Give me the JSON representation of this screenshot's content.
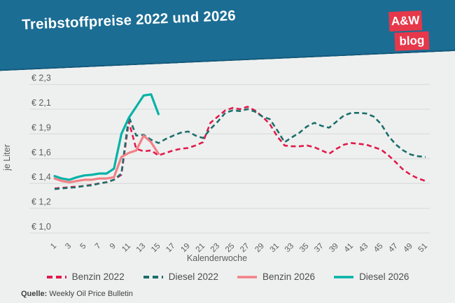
{
  "header": {
    "title": "Treibstoffpreise 2022 und 2026",
    "logo_line1": "A&W",
    "logo_line2": "blog",
    "banner_color": "#1b6d94",
    "logo_color": "#e6384a"
  },
  "chart_data": {
    "type": "line",
    "title": "Treibstoffpreise 2022 und 2026",
    "xlabel": "Kalenderwoche",
    "ylabel": "je Liter",
    "grid": true,
    "legend_position": "bottom",
    "y_gridline_labels": [
      "€ 2,3",
      "€ 2,1",
      "€ 1,9",
      "€ 1,6",
      "€ 1,4",
      "€ 1,2",
      "€ 1,0"
    ],
    "y_gridline_values": [
      2.3,
      2.1,
      1.9,
      1.6,
      1.4,
      1.2,
      1.0
    ],
    "x_tick_labels": [
      "1",
      "3",
      "5",
      "7",
      "9",
      "11",
      "13",
      "15",
      "17",
      "19",
      "21",
      "23",
      "25",
      "27",
      "29",
      "31",
      "33",
      "35",
      "37",
      "39",
      "41",
      "43",
      "45",
      "47",
      "49",
      "51"
    ],
    "x_range_weeks": [
      1,
      51
    ],
    "series": [
      {
        "name": "Benzin 2022",
        "color": "#e11a4c",
        "style": "dashed",
        "x_start_week": 1,
        "values": [
          1.36,
          1.365,
          1.37,
          1.375,
          1.38,
          1.39,
          1.4,
          1.41,
          1.43,
          1.47,
          2.0,
          1.72,
          1.69,
          1.7,
          1.64,
          1.67,
          1.7,
          1.72,
          1.73,
          1.76,
          1.8,
          1.99,
          2.04,
          2.09,
          2.11,
          2.1,
          2.12,
          2.09,
          2.04,
          1.98,
          1.87,
          1.76,
          1.75,
          1.75,
          1.76,
          1.74,
          1.7,
          1.66,
          1.72,
          1.77,
          1.79,
          1.78,
          1.77,
          1.74,
          1.71,
          1.64,
          1.57,
          1.51,
          1.47,
          1.44,
          1.42
        ]
      },
      {
        "name": "Diesel 2022",
        "color": "#1b6f6d",
        "style": "dashed",
        "x_start_week": 1,
        "values": [
          1.355,
          1.36,
          1.365,
          1.37,
          1.38,
          1.385,
          1.4,
          1.41,
          1.43,
          1.48,
          2.04,
          1.88,
          1.89,
          1.83,
          1.79,
          1.84,
          1.88,
          1.91,
          1.92,
          1.88,
          1.85,
          1.94,
          2.0,
          2.07,
          2.09,
          2.085,
          2.1,
          2.08,
          2.04,
          2.02,
          1.93,
          1.8,
          1.86,
          1.91,
          1.96,
          1.99,
          1.965,
          1.95,
          2.0,
          2.05,
          2.07,
          2.07,
          2.065,
          2.04,
          1.98,
          1.875,
          1.77,
          1.7,
          1.65,
          1.63,
          1.62
        ]
      },
      {
        "name": "Benzin 2026",
        "color": "#f28086",
        "style": "solid",
        "x_start_week": 1,
        "values": [
          1.44,
          1.42,
          1.41,
          1.42,
          1.43,
          1.43,
          1.44,
          1.44,
          1.45,
          1.62,
          1.67,
          1.7,
          1.88,
          1.8,
          1.66
        ]
      },
      {
        "name": "Diesel 2026",
        "color": "#06b2a7",
        "style": "solid",
        "x_start_week": 1,
        "values": [
          1.46,
          1.44,
          1.43,
          1.45,
          1.465,
          1.47,
          1.48,
          1.48,
          1.52,
          1.9,
          2.03,
          2.12,
          2.21,
          2.22,
          2.06
        ]
      }
    ]
  },
  "source": {
    "label": "Quelle:",
    "text": "Weekly Oil Price Bulletin"
  }
}
